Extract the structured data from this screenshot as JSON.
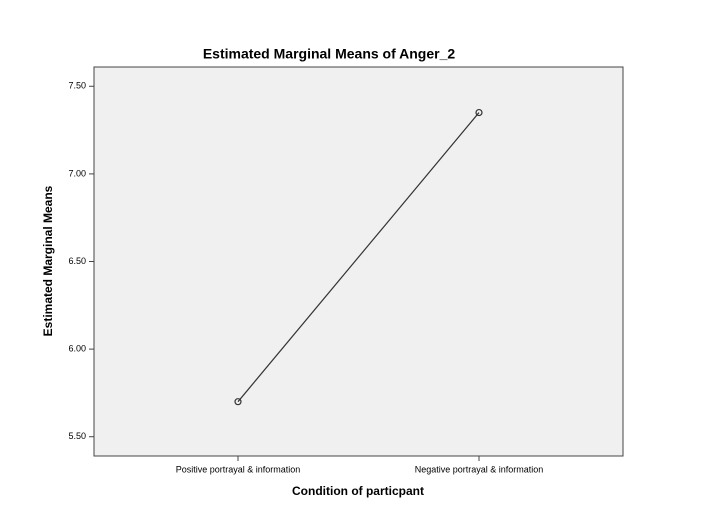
{
  "chart_data": {
    "type": "line",
    "title": "Estimated Marginal Means of Anger_2",
    "x_label": "Condition of particpant",
    "y_label": "Estimated Marginal Means",
    "categories": [
      "Positive portrayal & information",
      "Negative portrayal & information"
    ],
    "series": [
      {
        "name": "Anger_2",
        "color": "#333333",
        "values": [
          5.7,
          7.35
        ]
      }
    ],
    "ylim": [
      5.39,
      7.61
    ],
    "yticks": [
      {
        "value": 5.5,
        "label": "5.50"
      },
      {
        "value": 6,
        "label": "6.00"
      },
      {
        "value": 6.5,
        "label": "6.50"
      },
      {
        "value": 7,
        "label": "7.00"
      },
      {
        "value": 7.5,
        "label": "7.50"
      }
    ]
  }
}
